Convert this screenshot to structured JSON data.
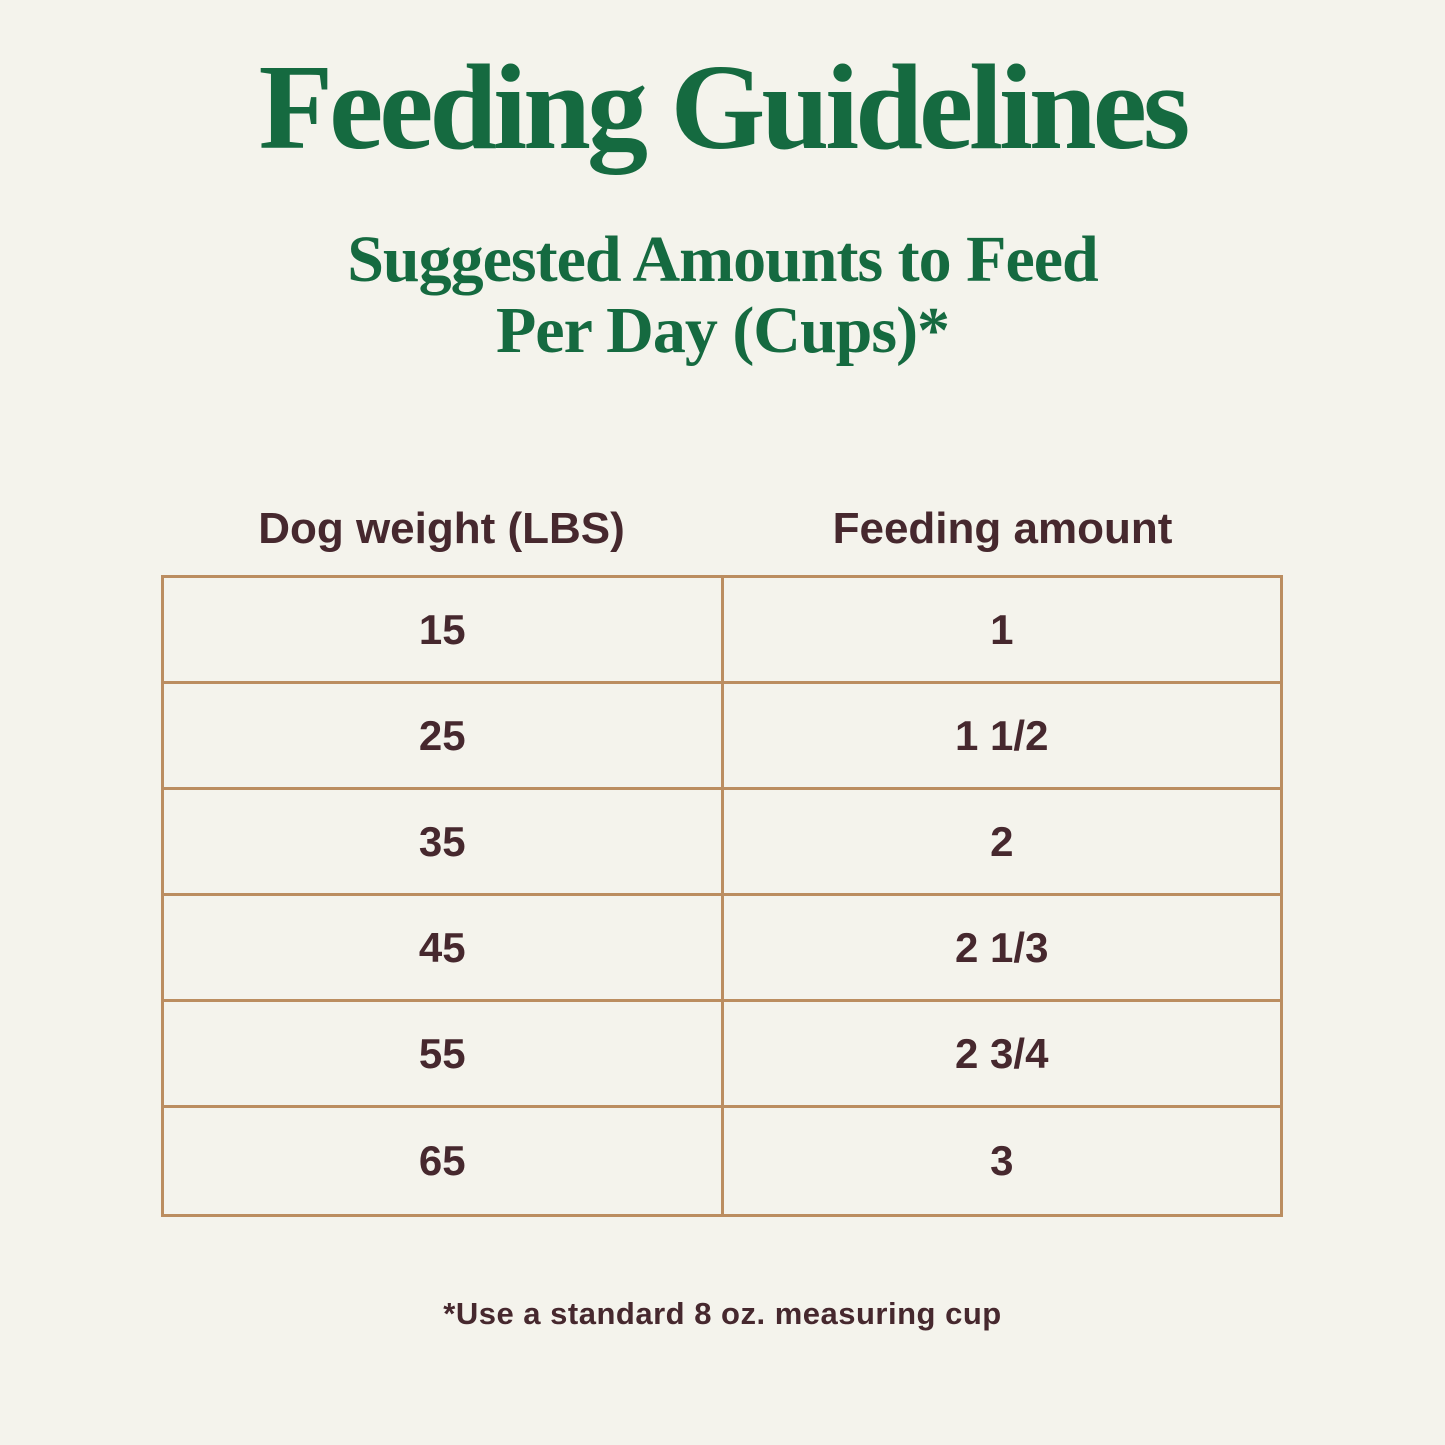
{
  "header": {
    "title": "Feeding Guidelines",
    "subtitle_line1": "Suggested Amounts to Feed",
    "subtitle_line2": "Per Day (Cups)*"
  },
  "table": {
    "columns": [
      "Dog weight (LBS)",
      "Feeding amount"
    ],
    "rows": [
      {
        "weight": "15",
        "amount": "1"
      },
      {
        "weight": "25",
        "amount": "1 1/2"
      },
      {
        "weight": "35",
        "amount": "2"
      },
      {
        "weight": "45",
        "amount": "2 1/3"
      },
      {
        "weight": "55",
        "amount": "2 3/4"
      },
      {
        "weight": "65",
        "amount": "3"
      }
    ]
  },
  "footnote": {
    "text": "*Use a standard 8 oz. measuring cup"
  },
  "colors": {
    "background": "#f4f3ec",
    "heading_green": "#156a40",
    "text_brown": "#46282e",
    "table_border": "#bb8d60"
  }
}
